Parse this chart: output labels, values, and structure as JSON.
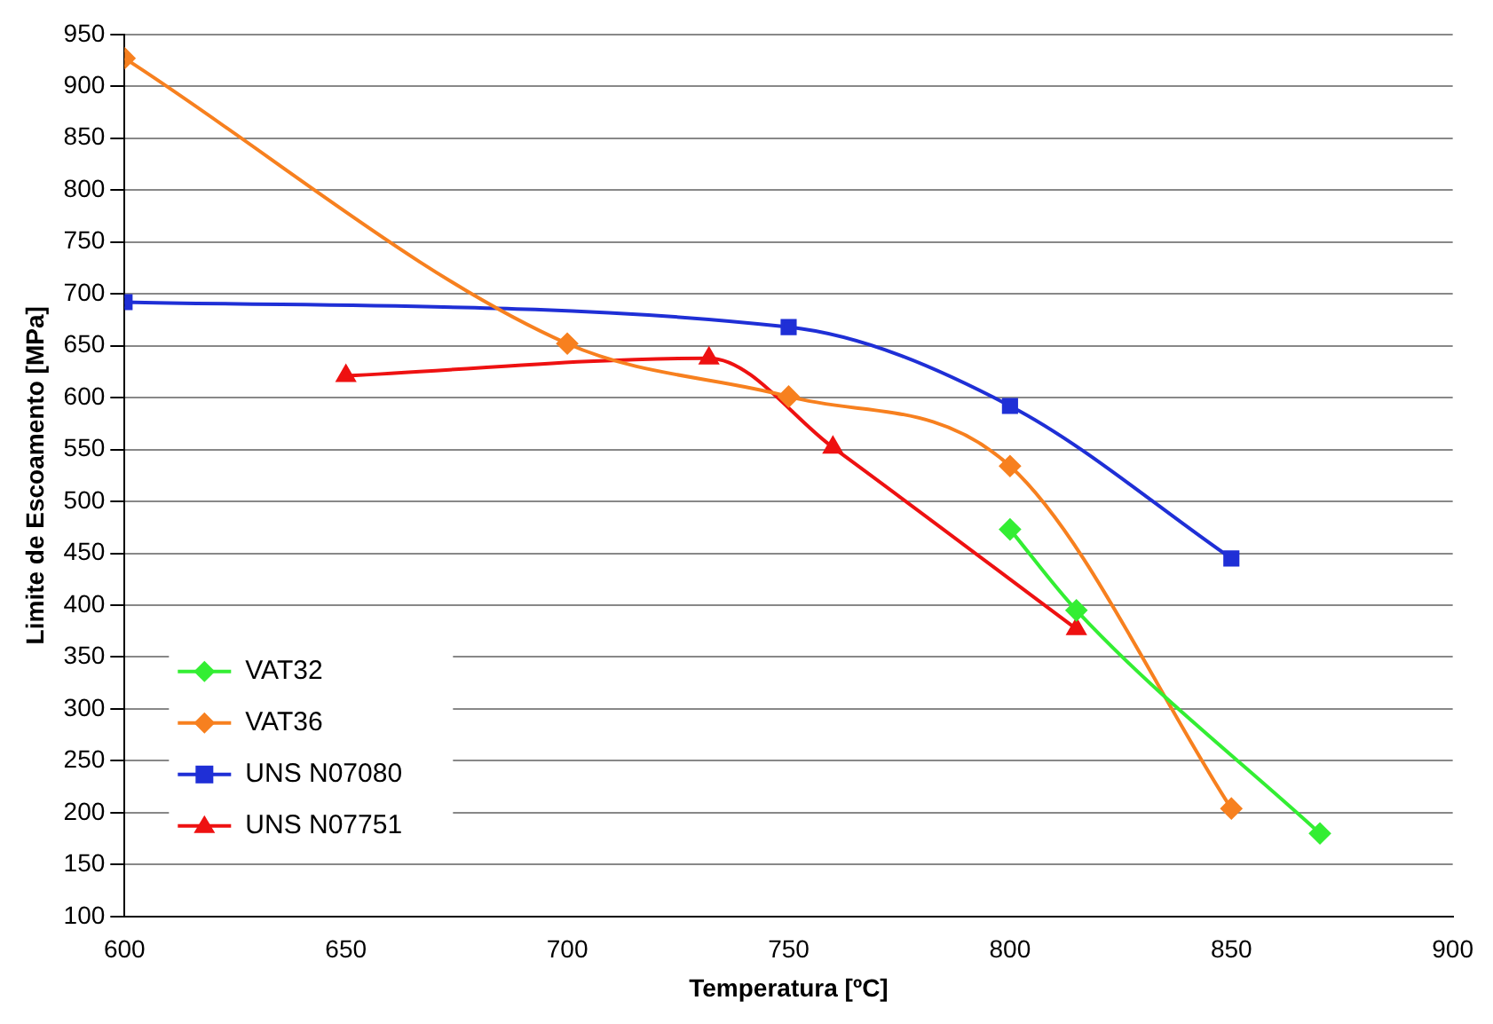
{
  "chart_data": {
    "type": "line",
    "xlabel": "Temperatura [ºC]",
    "ylabel": "Limite de Escoamento [MPa]",
    "xlim": [
      600,
      900
    ],
    "xticks": [
      600,
      650,
      700,
      750,
      800,
      850,
      900
    ],
    "ylim": [
      100,
      950
    ],
    "yticks": [
      100,
      150,
      200,
      250,
      300,
      350,
      400,
      450,
      500,
      550,
      600,
      650,
      700,
      750,
      800,
      850,
      900,
      950
    ],
    "grid": "y",
    "legend": "bottom left",
    "series": [
      {
        "name": "VAT32",
        "color": "#33ee33",
        "marker": "diamond",
        "x": [
          800,
          815,
          870
        ],
        "values": [
          473,
          395,
          180
        ]
      },
      {
        "name": "VAT36",
        "color": "#f7801f",
        "marker": "diamond",
        "x": [
          600,
          700,
          750,
          800,
          850
        ],
        "values": [
          927,
          652,
          601,
          534,
          204
        ]
      },
      {
        "name": "UNS N07080",
        "color": "#1f2fd6",
        "marker": "square",
        "x": [
          600,
          750,
          800,
          850
        ],
        "values": [
          692,
          668,
          592,
          445
        ]
      },
      {
        "name": "UNS N07751",
        "color": "#ee1111",
        "marker": "triangle",
        "x": [
          650,
          732,
          760,
          815
        ],
        "values": [
          621,
          638,
          552,
          377
        ]
      }
    ]
  }
}
